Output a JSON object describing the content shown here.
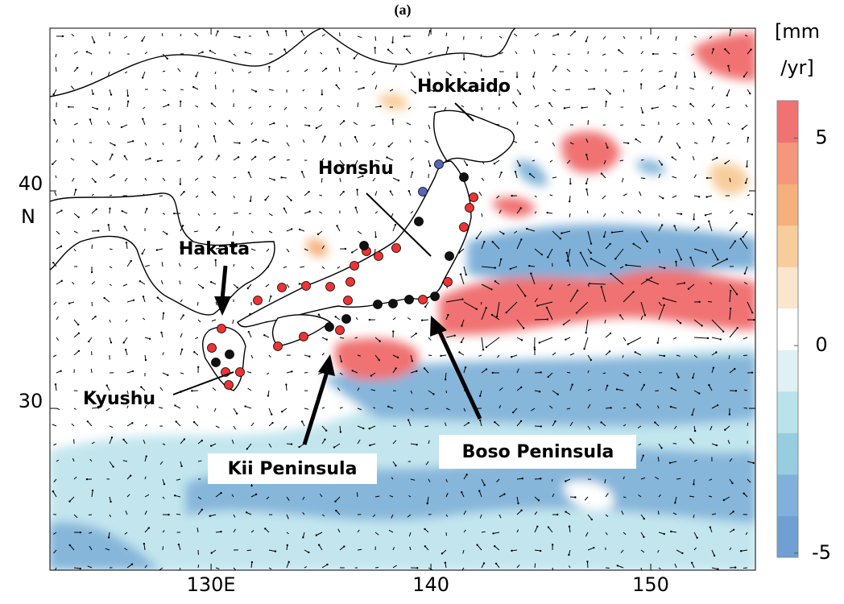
{
  "map": {
    "title": "(a)",
    "xlim": [
      122.67,
      154.76
    ],
    "ylim": [
      22.56,
      47.48
    ],
    "xticks": [
      {
        "value": 130,
        "label": "130E"
      },
      140,
      150
    ],
    "yticks": [
      30,
      40
    ],
    "ylabel": "N",
    "labels": {
      "hokkaido": "Hokkaido",
      "honshu": "Honshu",
      "hakata": "Hakata",
      "kyushu": "Kyushu",
      "kii": "Kii Peninsula",
      "boso": "Boso Peninsula"
    },
    "colorbar": {
      "title": [
        "[mm",
        "/yr]"
      ],
      "lim": [
        -5.1,
        5.9
      ],
      "ticks": [
        -5,
        0,
        5
      ],
      "colors": [
        "#6f9fd3",
        "#80b1da",
        "#97cde0",
        "#b9e2ea",
        "#e0f1f4",
        "#ffffff",
        "#fbe5cd",
        "#f7cd9b",
        "#f5b07c",
        "#f4977a",
        "#f07272"
      ]
    }
  }
}
